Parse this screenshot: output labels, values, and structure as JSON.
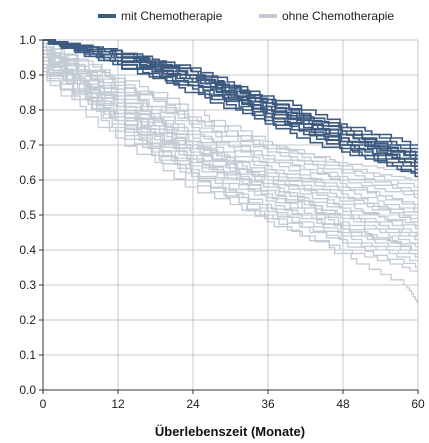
{
  "chart_data": {
    "type": "line",
    "step": true,
    "title": "",
    "xlabel": "Überlebenszeit (Monate)",
    "ylabel": "",
    "xlim": [
      0,
      60
    ],
    "ylim": [
      0,
      1.0
    ],
    "x_ticks": [
      0,
      12,
      24,
      36,
      48,
      60
    ],
    "y_ticks": [
      0.0,
      0.1,
      0.2,
      0.3,
      0.4,
      0.5,
      0.6,
      0.7,
      0.8,
      0.9,
      1.0
    ],
    "grid": true,
    "legend_position": "top",
    "legend": [
      {
        "label": "mit Chemotherapie",
        "color": "#3d5a80"
      },
      {
        "label": "ohne Chemotherapie",
        "color": "#c3cbd5"
      }
    ],
    "groups": [
      {
        "name": "ohne Chemotherapie",
        "color": "#c3cbd5",
        "curves": [
          {
            "x": [
              0,
              12,
              24,
              36,
              48,
              60
            ],
            "y": [
              0.96,
              0.83,
              0.71,
              0.62,
              0.55,
              0.5
            ]
          },
          {
            "x": [
              0,
              12,
              24,
              36,
              48,
              60
            ],
            "y": [
              0.97,
              0.86,
              0.74,
              0.65,
              0.58,
              0.53
            ]
          },
          {
            "x": [
              0,
              12,
              24,
              36,
              48,
              60
            ],
            "y": [
              0.95,
              0.8,
              0.67,
              0.58,
              0.5,
              0.44
            ]
          },
          {
            "x": [
              0,
              12,
              24,
              36,
              48,
              60
            ],
            "y": [
              0.98,
              0.88,
              0.77,
              0.68,
              0.61,
              0.56
            ]
          },
          {
            "x": [
              0,
              12,
              24,
              36,
              48,
              60
            ],
            "y": [
              0.93,
              0.76,
              0.62,
              0.53,
              0.45,
              0.39
            ]
          },
          {
            "x": [
              0,
              12,
              24,
              36,
              48,
              60
            ],
            "y": [
              0.97,
              0.84,
              0.72,
              0.64,
              0.57,
              0.51
            ]
          },
          {
            "x": [
              0,
              12,
              24,
              36,
              48,
              60
            ],
            "y": [
              0.94,
              0.78,
              0.65,
              0.56,
              0.48,
              0.42
            ]
          },
          {
            "x": [
              0,
              12,
              24,
              36,
              48,
              60
            ],
            "y": [
              0.99,
              0.9,
              0.8,
              0.71,
              0.64,
              0.58
            ]
          },
          {
            "x": [
              0,
              12,
              24,
              36,
              48,
              60
            ],
            "y": [
              0.92,
              0.74,
              0.6,
              0.5,
              0.43,
              0.37
            ]
          },
          {
            "x": [
              0,
              12,
              24,
              36,
              48,
              60
            ],
            "y": [
              0.96,
              0.82,
              0.69,
              0.6,
              0.52,
              0.47
            ]
          },
          {
            "x": [
              0,
              12,
              24,
              36,
              48,
              60
            ],
            "y": [
              0.95,
              0.81,
              0.68,
              0.61,
              0.54,
              0.49
            ]
          },
          {
            "x": [
              0,
              12,
              24,
              36,
              48,
              60
            ],
            "y": [
              0.97,
              0.85,
              0.73,
              0.66,
              0.6,
              0.55
            ]
          },
          {
            "x": [
              0,
              12,
              24,
              36,
              48,
              60
            ],
            "y": [
              0.9,
              0.72,
              0.58,
              0.48,
              0.4,
              0.34
            ]
          },
          {
            "x": [
              0,
              12,
              24,
              36,
              48,
              60
            ],
            "y": [
              0.98,
              0.87,
              0.75,
              0.67,
              0.59,
              0.52
            ]
          },
          {
            "x": [
              0,
              12,
              24,
              36,
              48,
              60
            ],
            "y": [
              0.93,
              0.77,
              0.64,
              0.54,
              0.46,
              0.4
            ]
          },
          {
            "x": [
              0,
              12,
              24,
              36,
              48,
              60
            ],
            "y": [
              0.96,
              0.79,
              0.66,
              0.57,
              0.49,
              0.43
            ]
          },
          {
            "x": [
              0,
              12,
              24,
              36,
              48,
              60
            ],
            "y": [
              0.94,
              0.83,
              0.7,
              0.63,
              0.56,
              0.48
            ]
          },
          {
            "x": [
              0,
              12,
              24,
              36,
              48,
              60
            ],
            "y": [
              0.91,
              0.75,
              0.61,
              0.52,
              0.44,
              0.38
            ]
          },
          {
            "x": [
              0,
              12,
              24,
              36,
              48,
              60
            ],
            "y": [
              0.97,
              0.86,
              0.76,
              0.69,
              0.62,
              0.57
            ]
          },
          {
            "x": [
              0,
              12,
              24,
              36,
              48,
              60
            ],
            "y": [
              0.95,
              0.8,
              0.66,
              0.55,
              0.46,
              0.41
            ]
          },
          {
            "x": [
              0,
              12,
              24,
              36,
              48,
              60
            ],
            "y": [
              0.99,
              0.89,
              0.78,
              0.7,
              0.63,
              0.6
            ]
          },
          {
            "x": [
              0,
              12,
              24,
              36,
              48,
              60
            ],
            "y": [
              0.92,
              0.78,
              0.63,
              0.51,
              0.42,
              0.35
            ]
          },
          {
            "x": [
              0,
              12,
              24,
              36,
              48,
              60
            ],
            "y": [
              0.98,
              0.84,
              0.71,
              0.59,
              0.51,
              0.45
            ]
          },
          {
            "x": [
              0,
              12,
              24,
              36,
              48,
              60
            ],
            "y": [
              0.96,
              0.81,
              0.7,
              0.61,
              0.53,
              0.46
            ]
          },
          {
            "x": [
              0,
              12,
              24,
              36,
              48,
              60
            ],
            "y": [
              0.93,
              0.79,
              0.67,
              0.57,
              0.47,
              0.4
            ]
          },
          {
            "x": [
              0,
              12,
              24,
              36,
              48,
              58,
              60
            ],
            "y": [
              0.94,
              0.77,
              0.62,
              0.49,
              0.39,
              0.3,
              0.25
            ]
          },
          {
            "x": [
              0,
              12,
              24,
              36,
              48,
              60
            ],
            "y": [
              0.97,
              0.88,
              0.78,
              0.7,
              0.65,
              0.62
            ]
          },
          {
            "x": [
              0,
              12,
              24,
              36,
              48,
              60
            ],
            "y": [
              0.95,
              0.82,
              0.69,
              0.58,
              0.5,
              0.44
            ]
          }
        ]
      },
      {
        "name": "mit Chemotherapie",
        "color": "#3d5a80",
        "curves": [
          {
            "x": [
              0,
              12,
              24,
              36,
              48,
              60
            ],
            "y": [
              1.0,
              0.96,
              0.9,
              0.81,
              0.73,
              0.67
            ]
          },
          {
            "x": [
              0,
              12,
              24,
              36,
              48,
              60
            ],
            "y": [
              1.0,
              0.95,
              0.88,
              0.79,
              0.71,
              0.65
            ]
          },
          {
            "x": [
              0,
              12,
              24,
              36,
              48,
              60
            ],
            "y": [
              1.0,
              0.97,
              0.91,
              0.83,
              0.75,
              0.69
            ]
          },
          {
            "x": [
              0,
              12,
              24,
              36,
              48,
              60
            ],
            "y": [
              1.0,
              0.94,
              0.87,
              0.78,
              0.7,
              0.64
            ]
          },
          {
            "x": [
              0,
              12,
              24,
              36,
              48,
              60
            ],
            "y": [
              1.0,
              0.96,
              0.89,
              0.8,
              0.72,
              0.66
            ]
          },
          {
            "x": [
              0,
              12,
              24,
              36,
              48,
              60
            ],
            "y": [
              1.0,
              0.93,
              0.86,
              0.77,
              0.69,
              0.63
            ]
          },
          {
            "x": [
              0,
              12,
              24,
              36,
              48,
              60
            ],
            "y": [
              1.0,
              0.97,
              0.92,
              0.84,
              0.76,
              0.7
            ]
          },
          {
            "x": [
              0,
              12,
              24,
              36,
              48,
              60
            ],
            "y": [
              1.0,
              0.95,
              0.87,
              0.79,
              0.7,
              0.61
            ]
          },
          {
            "x": [
              0,
              12,
              24,
              36,
              48,
              60
            ],
            "y": [
              1.0,
              0.96,
              0.9,
              0.82,
              0.74,
              0.68
            ]
          },
          {
            "x": [
              0,
              12,
              24,
              36,
              48,
              60
            ],
            "y": [
              1.0,
              0.94,
              0.88,
              0.8,
              0.72,
              0.65
            ]
          },
          {
            "x": [
              0,
              12,
              24,
              36,
              48,
              60
            ],
            "y": [
              1.0,
              0.95,
              0.89,
              0.81,
              0.71,
              0.64
            ]
          },
          {
            "x": [
              0,
              12,
              24,
              36,
              48,
              60
            ],
            "y": [
              1.0,
              0.97,
              0.9,
              0.83,
              0.74,
              0.67
            ]
          },
          {
            "x": [
              0,
              12,
              24,
              36,
              48,
              60
            ],
            "y": [
              1.0,
              0.93,
              0.85,
              0.76,
              0.68,
              0.62
            ]
          },
          {
            "x": [
              0,
              12,
              24,
              36,
              48,
              60
            ],
            "y": [
              1.0,
              0.96,
              0.91,
              0.82,
              0.73,
              0.66
            ]
          }
        ]
      }
    ]
  }
}
